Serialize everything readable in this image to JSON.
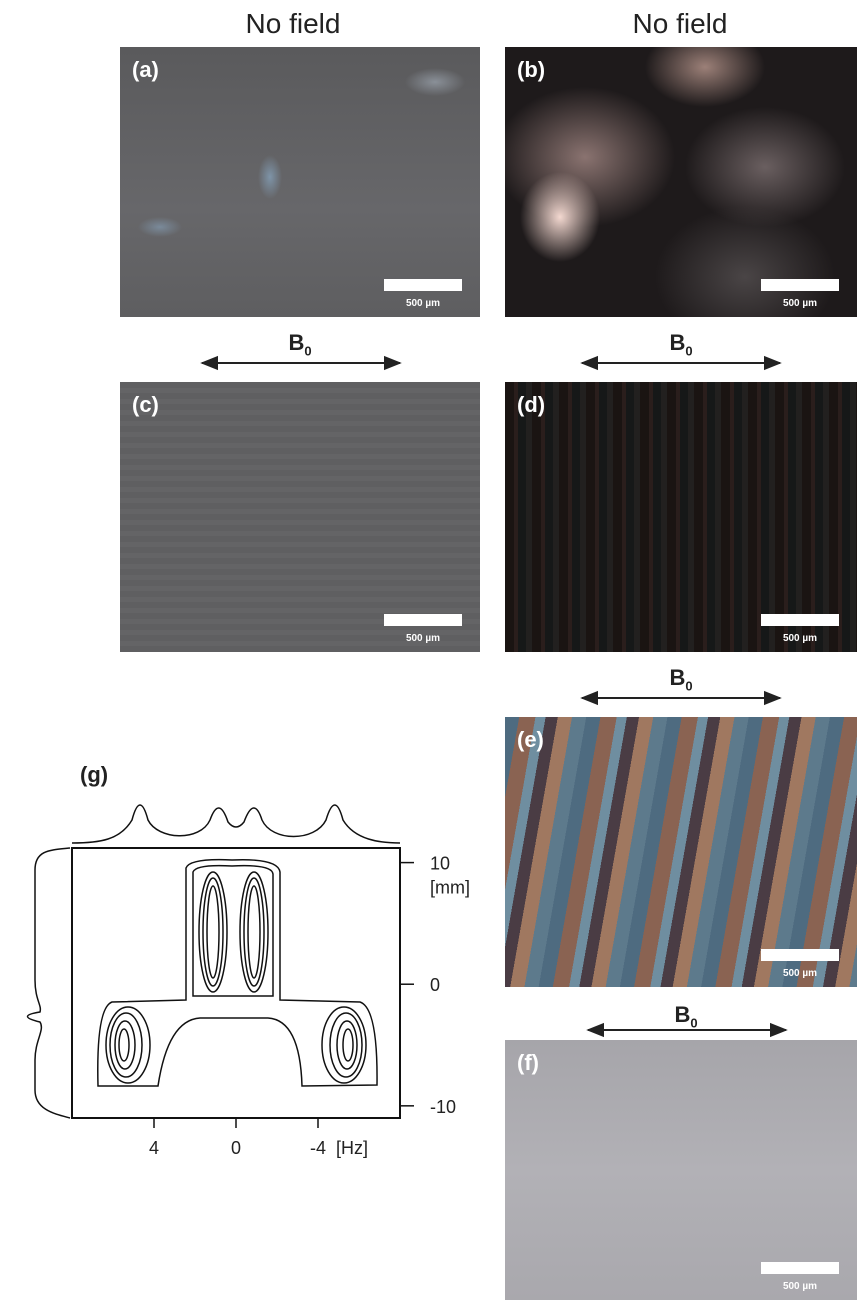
{
  "headers": [
    "No field",
    "No field"
  ],
  "panels": [
    {
      "label": "(a)",
      "scale_bar": "500 µm"
    },
    {
      "label": "(b)",
      "scale_bar": "500 µm"
    },
    {
      "label": "(c)",
      "scale_bar": "500 µm"
    },
    {
      "label": "(d)",
      "scale_bar": "500 µm"
    },
    {
      "label": "(e)",
      "scale_bar": "500 µm"
    },
    {
      "label": "(f)",
      "scale_bar": "500 µm"
    }
  ],
  "field_labels": [
    {
      "main": "B",
      "sub": "0"
    },
    {
      "main": "B",
      "sub": "0"
    },
    {
      "main": "B",
      "sub": "0"
    },
    {
      "main": "B",
      "sub": "0"
    }
  ],
  "plot": {
    "type": "contour",
    "label": "(g)",
    "xlim": [
      8,
      -8
    ],
    "xticks": [
      4,
      0,
      -4
    ],
    "x_unit": "[Hz]",
    "ylim": [
      -11,
      11.2
    ],
    "yticks": [
      10,
      0,
      -10
    ],
    "y_unit": "[mm]"
  }
}
